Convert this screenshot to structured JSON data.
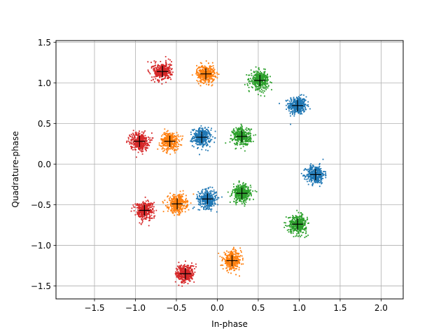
{
  "chart_data": {
    "type": "scatter",
    "title": "",
    "xlabel": "In-phase",
    "ylabel": "Quadrature-phase",
    "xlim": [
      -1.97,
      2.27
    ],
    "ylim": [
      -1.66,
      1.52
    ],
    "xticks": [
      -1.5,
      -1.0,
      -0.5,
      0.0,
      0.5,
      1.0,
      1.5,
      2.0
    ],
    "xtick_labels": [
      "−1.5",
      "−1.0",
      "−0.5",
      "0.0",
      "0.5",
      "1.0",
      "1.5",
      "2.0"
    ],
    "yticks": [
      -1.5,
      -1.0,
      -0.5,
      0.0,
      0.5,
      1.0,
      1.5
    ],
    "ytick_labels": [
      "−1.5",
      "−1.0",
      "−0.5",
      "0.0",
      "0.5",
      "1.0",
      "1.5"
    ],
    "grid": true,
    "legend": "none",
    "marker_color": "#000000",
    "cluster_spread": 0.055,
    "series": [
      {
        "color": "#1f77b4",
        "centers": [
          [
            0.98,
            0.72
          ],
          [
            -0.19,
            0.33
          ],
          [
            1.2,
            -0.13
          ],
          [
            -0.12,
            -0.43
          ]
        ]
      },
      {
        "color": "#ff7f0e",
        "centers": [
          [
            -0.14,
            1.11
          ],
          [
            -0.58,
            0.28
          ],
          [
            -0.49,
            -0.49
          ],
          [
            0.18,
            -1.19
          ]
        ]
      },
      {
        "color": "#2ca02c",
        "centers": [
          [
            0.52,
            1.03
          ],
          [
            0.3,
            0.34
          ],
          [
            0.3,
            -0.36
          ],
          [
            0.98,
            -0.74
          ]
        ]
      },
      {
        "color": "#d62728",
        "centers": [
          [
            -0.67,
            1.14
          ],
          [
            -0.95,
            0.28
          ],
          [
            -0.89,
            -0.57
          ],
          [
            -0.39,
            -1.35
          ]
        ]
      }
    ]
  }
}
